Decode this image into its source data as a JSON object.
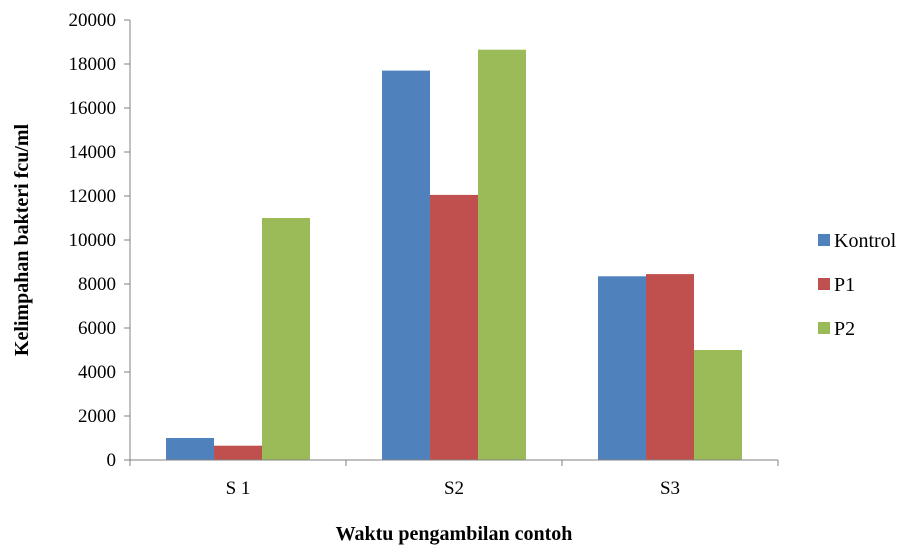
{
  "chart_data": {
    "type": "bar",
    "categories": [
      "S 1",
      "S2",
      "S3"
    ],
    "series": [
      {
        "name": "Kontrol",
        "color": "#4f81bd",
        "values": [
          1000,
          17700,
          8350
        ]
      },
      {
        "name": "P1",
        "color": "#c0504d",
        "values": [
          650,
          12050,
          8450
        ]
      },
      {
        "name": "P2",
        "color": "#9bbb59",
        "values": [
          11000,
          18650,
          5000
        ]
      }
    ],
    "xlabel": "Waktu pengambilan contoh",
    "ylabel": "Kelimpahan bakteri fcu/ml",
    "ylim": [
      0,
      20000
    ],
    "yticks": [
      "0",
      "2000",
      "4000",
      "6000",
      "8000",
      "10000",
      "12000",
      "14000",
      "16000",
      "18000",
      "20000"
    ],
    "grid": false,
    "legend_position": "right"
  }
}
